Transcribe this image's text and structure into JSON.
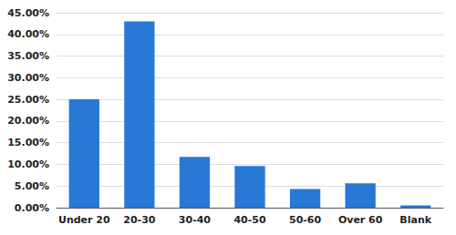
{
  "chart_data": {
    "type": "bar",
    "categories": [
      "Under 20",
      "20-30",
      "30-40",
      "40-50",
      "50-60",
      "Over 60",
      "Blank"
    ],
    "values": [
      0.25,
      0.43,
      0.117,
      0.096,
      0.043,
      0.056,
      0.005
    ],
    "color": "#2878d6",
    "ylim": [
      0,
      0.45
    ],
    "yticks": [
      {
        "value": 0.0,
        "label": "0.00%"
      },
      {
        "value": 0.05,
        "label": "5.00%"
      },
      {
        "value": 0.1,
        "label": "10.00%"
      },
      {
        "value": 0.15,
        "label": "15.00%"
      },
      {
        "value": 0.2,
        "label": "20.00%"
      },
      {
        "value": 0.25,
        "label": "25.00%"
      },
      {
        "value": 0.3,
        "label": "30.00%"
      },
      {
        "value": 0.35,
        "label": "35.00%"
      },
      {
        "value": 0.4,
        "label": "40.00%"
      },
      {
        "value": 0.45,
        "label": "45.00%"
      }
    ],
    "grid": true
  }
}
